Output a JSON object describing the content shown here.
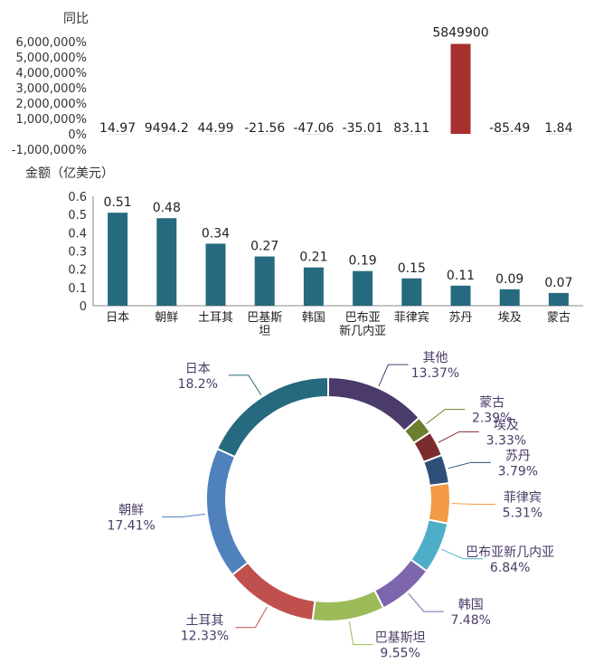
{
  "chart_data": [
    {
      "type": "bar",
      "title": "同比",
      "categories": [
        "日本",
        "朝鲜",
        "土耳其",
        "巴基斯坦",
        "韩国",
        "巴布亚新几内亚",
        "菲律宾",
        "苏丹",
        "埃及",
        "蒙古"
      ],
      "values": [
        14.97,
        9494.2,
        44.99,
        -21.56,
        -47.06,
        -35.01,
        83.11,
        5849900,
        -85.49,
        1.84
      ],
      "data_labels": [
        "14.97",
        "9494.2",
        "44.99",
        "-21.56",
        "-47.06",
        "-35.01",
        "83.11",
        "5849900",
        "-85.49",
        "1.84"
      ],
      "yticks": [
        "6,000,000%",
        "5,000,000%",
        "4,000,000%",
        "3,000,000%",
        "2,000,000%",
        "1,000,000%",
        "0%",
        "-1,000,000%"
      ],
      "ylim": [
        -1000000,
        6000000
      ],
      "grid": false,
      "colors": {
        "normal": "#cfcfcf",
        "highlight": "#a8302f"
      }
    },
    {
      "type": "bar",
      "title": "金额（亿美元）",
      "categories": [
        "日本",
        "朝鲜",
        "土耳其",
        "巴基斯坦",
        "韩国",
        "巴布亚新几内亚",
        "菲律宾",
        "苏丹",
        "埃及",
        "蒙古"
      ],
      "category_lines": [
        [
          "日本"
        ],
        [
          "朝鲜"
        ],
        [
          "土耳其"
        ],
        [
          "巴基斯",
          "坦"
        ],
        [
          "韩国"
        ],
        [
          "巴布亚",
          "新几内亚"
        ],
        [
          "菲律宾"
        ],
        [
          "苏丹"
        ],
        [
          "埃及"
        ],
        [
          "蒙古"
        ]
      ],
      "values": [
        0.51,
        0.48,
        0.34,
        0.27,
        0.21,
        0.19,
        0.15,
        0.11,
        0.09,
        0.07
      ],
      "data_labels": [
        "0.51",
        "0.48",
        "0.34",
        "0.27",
        "0.21",
        "0.19",
        "0.15",
        "0.11",
        "0.09",
        "0.07"
      ],
      "yticks": [
        "0.6",
        "0.5",
        "0.4",
        "0.3",
        "0.2",
        "0.1",
        "0"
      ],
      "ylim": [
        0,
        0.6
      ],
      "grid": false,
      "color": "#256a7e"
    },
    {
      "type": "pie",
      "style": "donut",
      "slices": [
        {
          "name": "其他",
          "value": 13.37,
          "pct_label": "13.37%",
          "color": "#4b3b6a"
        },
        {
          "name": "蒙古",
          "value": 2.39,
          "pct_label": "2.39%",
          "color": "#6b7f2f"
        },
        {
          "name": "埃及",
          "value": 3.33,
          "pct_label": "3.33%",
          "color": "#7a2c2c"
        },
        {
          "name": "苏丹",
          "value": 3.79,
          "pct_label": "3.79%",
          "color": "#2f4f7a"
        },
        {
          "name": "菲律宾",
          "value": 5.31,
          "pct_label": "5.31%",
          "color": "#f29a45"
        },
        {
          "name": "巴布亚新几内亚",
          "value": 6.84,
          "pct_label": "6.84%",
          "color": "#4eaec7"
        },
        {
          "name": "韩国",
          "value": 7.48,
          "pct_label": "7.48%",
          "color": "#7d66ad"
        },
        {
          "name": "巴基斯坦",
          "value": 9.55,
          "pct_label": "9.55%",
          "color": "#9bbb59"
        },
        {
          "name": "土耳其",
          "value": 12.33,
          "pct_label": "12.33%",
          "color": "#c0504d"
        },
        {
          "name": "朝鲜",
          "value": 17.41,
          "pct_label": "17.41%",
          "color": "#4f81bd"
        },
        {
          "name": "日本",
          "value": 18.2,
          "pct_label": "18.2%",
          "color": "#256a7e"
        }
      ],
      "label_color": "#4a3b68"
    }
  ]
}
